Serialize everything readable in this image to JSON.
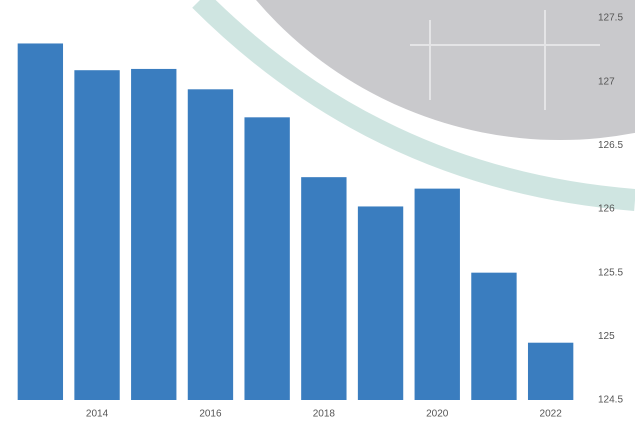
{
  "chart_data": {
    "type": "bar",
    "categories": [
      null,
      "2014",
      null,
      "2016",
      null,
      "2018",
      null,
      "2020",
      null,
      "2022"
    ],
    "values": [
      127.3,
      127.09,
      127.1,
      126.94,
      126.72,
      126.25,
      126.02,
      126.16,
      125.5,
      124.95
    ],
    "color": "#3a7dbf",
    "ylim": [
      124.5,
      127.5
    ],
    "yticks": [
      124.5,
      125,
      125.5,
      126,
      126.5,
      127,
      127.5
    ]
  }
}
